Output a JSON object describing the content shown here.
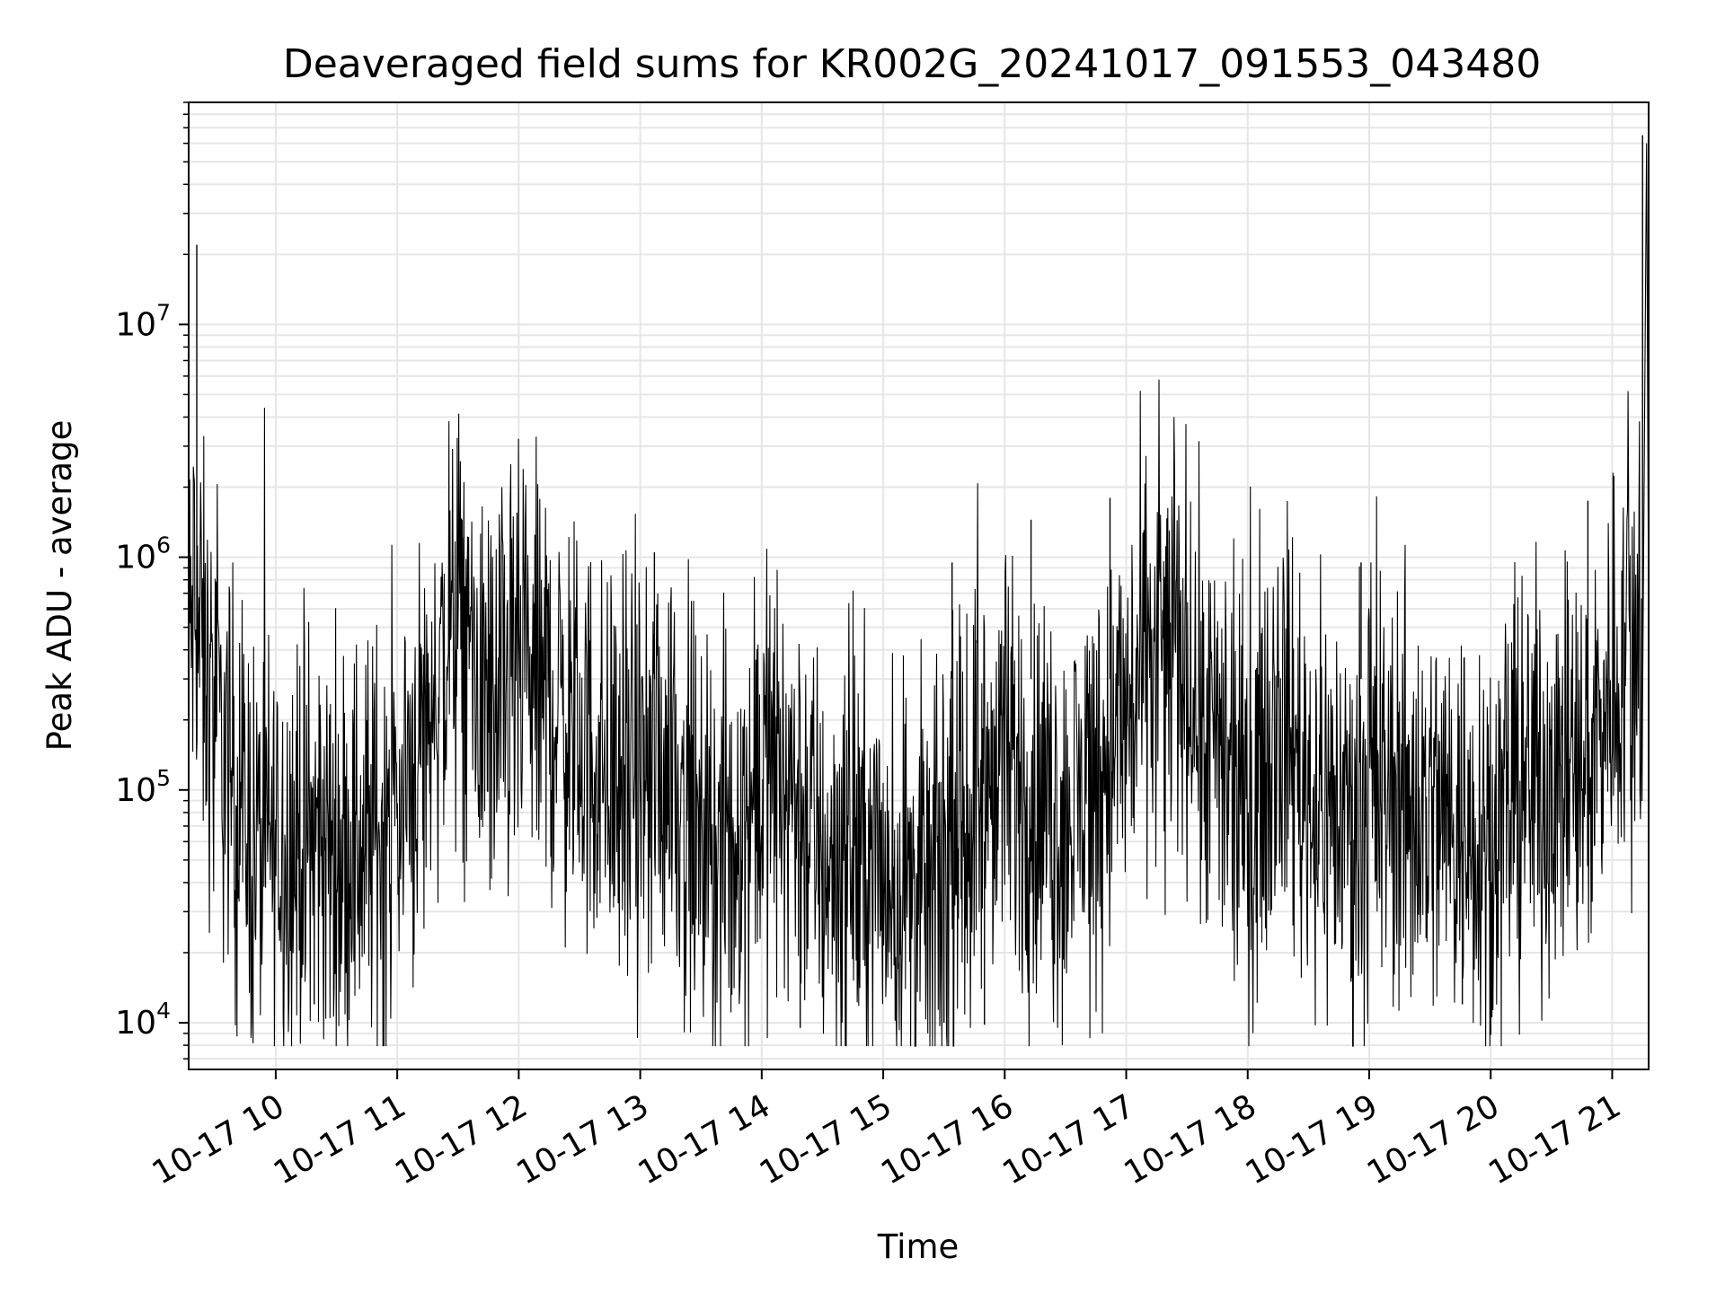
{
  "chart_data": {
    "type": "line",
    "title": "Deaveraged field sums for KR002G_20241017_091553_043480",
    "xlabel": "Time",
    "ylabel": "Peak ADU - average",
    "yscale": "log",
    "ylim": [
      6300,
      90000000
    ],
    "xlim": [
      "2024-10-17 09:17",
      "2024-10-17 21:18"
    ],
    "grid": true,
    "x_tick_labels": [
      "10-17 10",
      "10-17 11",
      "10-17 12",
      "10-17 13",
      "10-17 14",
      "10-17 15",
      "10-17 16",
      "10-17 17",
      "10-17 18",
      "10-17 19",
      "10-17 20",
      "10-17 21"
    ],
    "x_ticks": [
      "2024-10-17 10:00",
      "2024-10-17 11:00",
      "2024-10-17 12:00",
      "2024-10-17 13:00",
      "2024-10-17 14:00",
      "2024-10-17 15:00",
      "2024-10-17 16:00",
      "2024-10-17 17:00",
      "2024-10-17 18:00",
      "2024-10-17 19:00",
      "2024-10-17 20:00",
      "2024-10-17 21:00"
    ],
    "y_ticks": [
      {
        "value": 10000,
        "base": "10",
        "exp": "4"
      },
      {
        "value": 100000,
        "base": "10",
        "exp": "5"
      },
      {
        "value": 1000000,
        "base": "10",
        "exp": "6"
      },
      {
        "value": 10000000,
        "base": "10",
        "exp": "7"
      }
    ],
    "series": [
      {
        "color": "#000000",
        "x": [
          "2024-10-17 09:17",
          "2024-10-17 09:20",
          "2024-10-17 09:25",
          "2024-10-17 09:30",
          "2024-10-17 09:40",
          "2024-10-17 09:50",
          "2024-10-17 10:00",
          "2024-10-17 10:15",
          "2024-10-17 10:30",
          "2024-10-17 10:45",
          "2024-10-17 11:00",
          "2024-10-17 11:15",
          "2024-10-17 11:30",
          "2024-10-17 11:45",
          "2024-10-17 12:00",
          "2024-10-17 12:15",
          "2024-10-17 12:30",
          "2024-10-17 12:45",
          "2024-10-17 13:00",
          "2024-10-17 13:15",
          "2024-10-17 13:30",
          "2024-10-17 13:45",
          "2024-10-17 14:00",
          "2024-10-17 14:15",
          "2024-10-17 14:30",
          "2024-10-17 14:45",
          "2024-10-17 15:00",
          "2024-10-17 15:15",
          "2024-10-17 15:30",
          "2024-10-17 15:45",
          "2024-10-17 16:00",
          "2024-10-17 16:15",
          "2024-10-17 16:30",
          "2024-10-17 16:45",
          "2024-10-17 17:00",
          "2024-10-17 17:15",
          "2024-10-17 17:30",
          "2024-10-17 17:45",
          "2024-10-17 18:00",
          "2024-10-17 18:15",
          "2024-10-17 18:30",
          "2024-10-17 18:45",
          "2024-10-17 19:00",
          "2024-10-17 19:15",
          "2024-10-17 19:30",
          "2024-10-17 19:45",
          "2024-10-17 20:00",
          "2024-10-17 20:15",
          "2024-10-17 20:30",
          "2024-10-17 20:45",
          "2024-10-17 21:00",
          "2024-10-17 21:10",
          "2024-10-17 21:15",
          "2024-10-17 21:17"
        ],
        "y": [
          400000,
          650000,
          300000,
          200000,
          100000,
          55000,
          60000,
          60000,
          55000,
          60000,
          80000,
          200000,
          550000,
          200000,
          300000,
          250000,
          160000,
          120000,
          100000,
          150000,
          50000,
          55000,
          120000,
          110000,
          50000,
          55000,
          45000,
          35000,
          40000,
          90000,
          120000,
          90000,
          70000,
          120000,
          200000,
          400000,
          380000,
          120000,
          80000,
          250000,
          100000,
          80000,
          90000,
          100000,
          80000,
          75000,
          70000,
          100000,
          120000,
          110000,
          300000,
          450000,
          400000,
          60000000
        ],
        "spikes": [
          {
            "x": "2024-10-17 09:21",
            "y": 22000000
          },
          {
            "x": "2024-10-17 10:19",
            "y": 12000
          },
          {
            "x": "2024-10-17 11:32",
            "y": 1450000
          },
          {
            "x": "2024-10-17 12:08",
            "y": 1250000
          },
          {
            "x": "2024-10-17 13:07",
            "y": 1050000
          },
          {
            "x": "2024-10-17 14:19",
            "y": 9500
          },
          {
            "x": "2024-10-17 15:30",
            "y": 10000
          },
          {
            "x": "2024-10-17 15:34",
            "y": 950000
          },
          {
            "x": "2024-10-17 15:50",
            "y": 9800
          },
          {
            "x": "2024-10-17 16:13",
            "y": 1450000
          },
          {
            "x": "2024-10-17 16:52",
            "y": 1800000
          },
          {
            "x": "2024-10-17 18:51",
            "y": 15000
          },
          {
            "x": "2024-10-17 18:56",
            "y": 950000
          },
          {
            "x": "2024-10-17 19:46",
            "y": 12000
          },
          {
            "x": "2024-10-17 20:48",
            "y": 1750000
          },
          {
            "x": "2024-10-17 21:15",
            "y": 65000000
          }
        ]
      }
    ]
  }
}
